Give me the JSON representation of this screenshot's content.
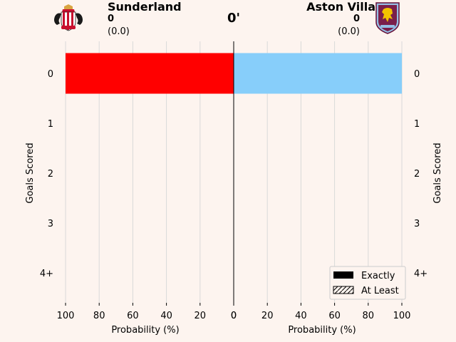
{
  "header": {
    "home": {
      "name": "Sunderland",
      "goals": "0",
      "xg": "(0.0)"
    },
    "away": {
      "name": "Aston Villa",
      "goals": "0",
      "xg": "(0.0)"
    },
    "minute": "0'"
  },
  "chart_data": {
    "type": "bar",
    "orientation": "horizontal",
    "categories": [
      "0",
      "1",
      "2",
      "3",
      "4+"
    ],
    "series": [
      {
        "name": "Sunderland",
        "side": "left",
        "color": "#ff0000",
        "values": [
          100,
          0,
          0,
          0,
          0
        ]
      },
      {
        "name": "Aston Villa",
        "side": "right",
        "color": "#87cefa",
        "values": [
          100,
          0,
          0,
          0,
          0
        ]
      }
    ],
    "xlabel_left": "Probability (%)",
    "xlabel_right": "Probability (%)",
    "ylabel_left": "Goals Scored",
    "ylabel_right": "Goals Scored",
    "xlim": [
      0,
      100
    ],
    "xticks_left": [
      "100",
      "80",
      "60",
      "40",
      "20",
      "0"
    ],
    "xticks_right": [
      "0",
      "20",
      "40",
      "60",
      "80",
      "100"
    ],
    "grid": true,
    "legend": {
      "position": "bottom-right",
      "entries": [
        {
          "label": "Exactly",
          "style": "solid"
        },
        {
          "label": "At Least",
          "style": "hatched"
        }
      ]
    }
  }
}
